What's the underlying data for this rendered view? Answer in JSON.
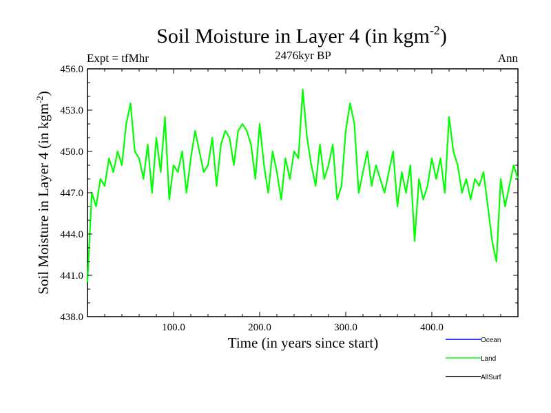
{
  "chart_data": {
    "type": "line",
    "title": "Soil Moisture in Layer 4 (in kgm",
    "title_superscript": "-2",
    "title_suffix": ")",
    "subtitle": "2476kyr BP",
    "left_label": "Expt = tfMhr",
    "right_label": "Ann",
    "xlabel": "Time (in years since start)",
    "ylabel": "Soil Moisture in Layer 4 (in kgm",
    "ylabel_superscript": "-2",
    "ylabel_suffix": ")",
    "xlim": [
      0,
      500
    ],
    "ylim": [
      438.0,
      456.0
    ],
    "x_ticks": [
      100,
      200,
      300,
      400
    ],
    "x_tick_labels": [
      "100.0",
      "200.0",
      "300.0",
      "400.0"
    ],
    "y_ticks": [
      438,
      441,
      444,
      447,
      450,
      453,
      456
    ],
    "y_tick_labels": [
      "438.0",
      "441.0",
      "444.0",
      "447.0",
      "450.0",
      "453.0",
      "456.0"
    ],
    "legend": [
      {
        "name": "Ocean",
        "color": "#0000ff"
      },
      {
        "name": "Land",
        "color": "#00ff00"
      },
      {
        "name": "AllSurf",
        "color": "#000000"
      }
    ],
    "series": [
      {
        "name": "Land",
        "color": "#00ff00",
        "x": [
          0,
          5,
          10,
          15,
          20,
          25,
          30,
          35,
          40,
          45,
          50,
          55,
          60,
          65,
          70,
          75,
          80,
          85,
          90,
          95,
          100,
          105,
          110,
          115,
          120,
          125,
          130,
          135,
          140,
          145,
          150,
          155,
          160,
          165,
          170,
          175,
          180,
          185,
          190,
          195,
          200,
          205,
          210,
          215,
          220,
          225,
          230,
          235,
          240,
          245,
          250,
          255,
          260,
          265,
          270,
          275,
          280,
          285,
          290,
          295,
          300,
          305,
          310,
          315,
          320,
          325,
          330,
          335,
          340,
          345,
          350,
          355,
          360,
          365,
          370,
          375,
          380,
          385,
          390,
          395,
          400,
          405,
          410,
          415,
          420,
          425,
          430,
          435,
          440,
          445,
          450,
          455,
          460,
          465,
          470,
          475,
          480,
          485,
          490,
          495,
          500
        ],
        "values": [
          440.5,
          447.0,
          446.0,
          448.0,
          447.5,
          449.5,
          448.5,
          450.0,
          449.0,
          452.0,
          453.5,
          450.0,
          449.5,
          448.0,
          450.5,
          447.0,
          451.0,
          448.5,
          452.5,
          446.5,
          449.0,
          448.5,
          450.0,
          447.0,
          449.5,
          451.5,
          450.0,
          448.5,
          449.0,
          451.0,
          447.5,
          450.5,
          451.5,
          451.0,
          449.0,
          451.5,
          452.0,
          451.5,
          450.5,
          448.0,
          452.0,
          449.0,
          447.0,
          450.0,
          448.5,
          446.5,
          449.5,
          448.0,
          450.0,
          449.5,
          454.5,
          451.0,
          449.0,
          447.5,
          450.5,
          448.0,
          449.0,
          450.5,
          446.5,
          447.5,
          451.5,
          453.5,
          452.0,
          447.0,
          448.5,
          450.0,
          447.5,
          449.0,
          448.0,
          447.0,
          448.5,
          450.0,
          446.0,
          448.5,
          447.0,
          449.0,
          443.5,
          448.0,
          446.5,
          447.5,
          449.5,
          448.0,
          449.5,
          447.0,
          452.5,
          450.0,
          449.0,
          447.0,
          448.0,
          446.5,
          448.0,
          447.5,
          448.5,
          446.0,
          443.5,
          442.0,
          448.0,
          446.0,
          447.5,
          449.0,
          448.0
        ]
      }
    ]
  }
}
